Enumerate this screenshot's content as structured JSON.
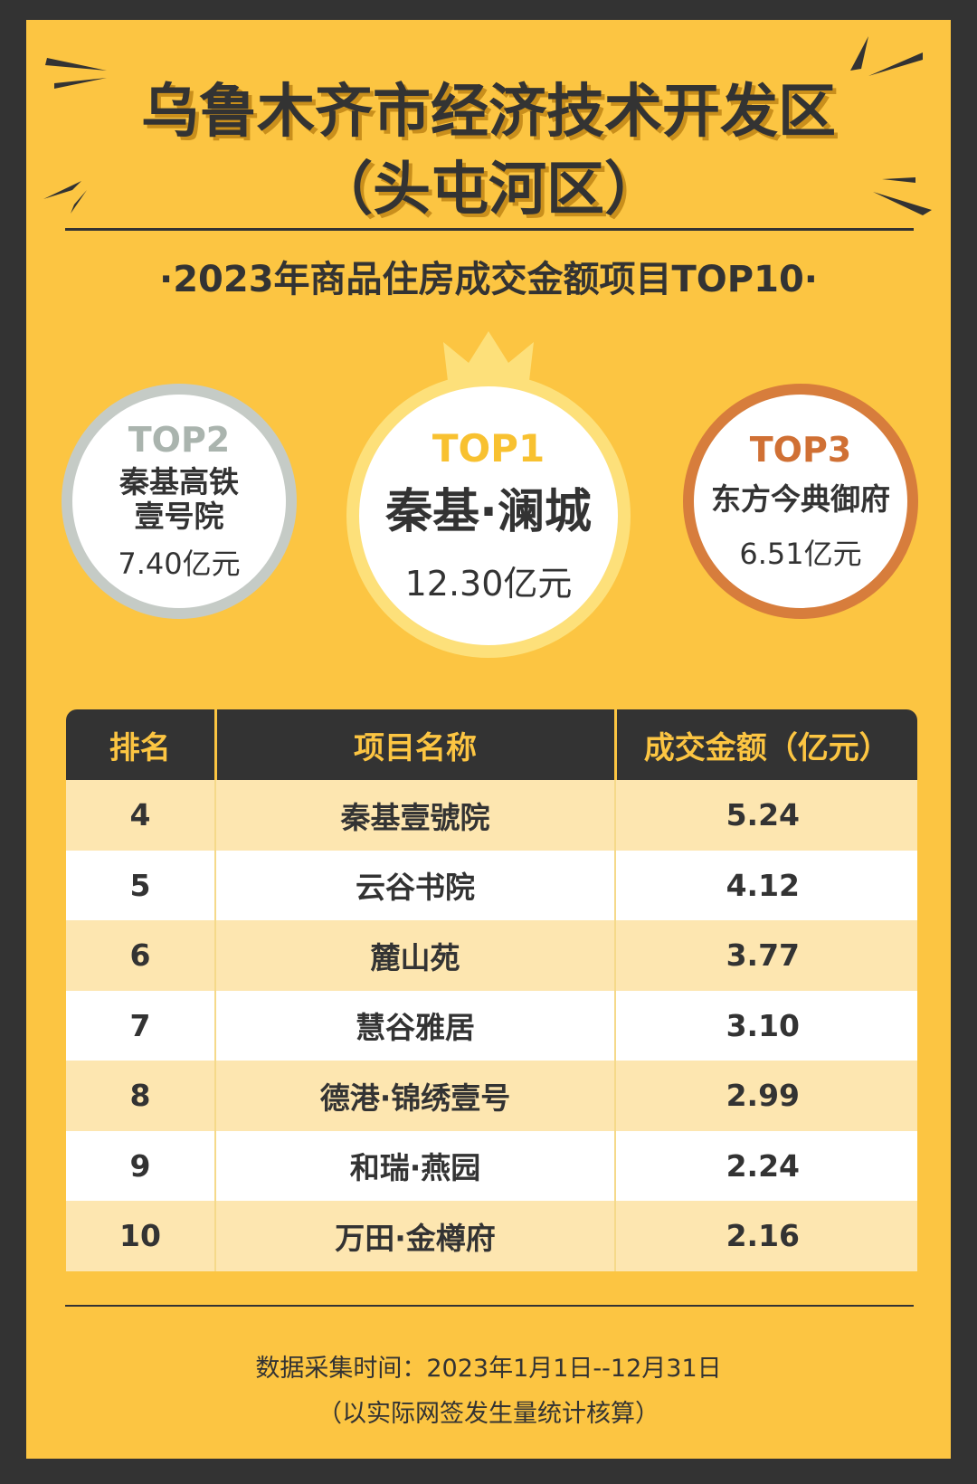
{
  "header": {
    "title_line1": "乌鲁木齐市经济技术开发区",
    "title_line2": "（头屯河区）",
    "subtitle": "·2023年商品住房成交金额项目TOP10·"
  },
  "podium": [
    {
      "rank": "TOP2",
      "name_line1": "秦基高铁",
      "name_line2": "壹号院",
      "amount": "7.40亿元",
      "color": "#c5cbc6"
    },
    {
      "rank": "TOP1",
      "name_line1": "秦基·澜城",
      "amount": "12.30亿元",
      "color": "#fde07a"
    },
    {
      "rank": "TOP3",
      "name_line1": "东方今典御府",
      "amount": "6.51亿元",
      "color": "#d77d3c"
    }
  ],
  "table": {
    "headers": [
      "排名",
      "项目名称",
      "成交金额（亿元）"
    ],
    "rows": [
      [
        "4",
        "秦基壹號院",
        "5.24"
      ],
      [
        "5",
        "云谷书院",
        "4.12"
      ],
      [
        "6",
        "麓山苑",
        "3.77"
      ],
      [
        "7",
        "慧谷雅居",
        "3.10"
      ],
      [
        "8",
        "德港·锦绣壹号",
        "2.99"
      ],
      [
        "9",
        "和瑞·燕园",
        "2.24"
      ],
      [
        "10",
        "万田·金樽府",
        "2.16"
      ]
    ]
  },
  "footer": {
    "line1": "数据采集时间：2023年1月1日--12月31日",
    "line2": "（以实际网签发生量统计核算）"
  },
  "colors": {
    "background": "#fcc542",
    "dark": "#333333"
  }
}
